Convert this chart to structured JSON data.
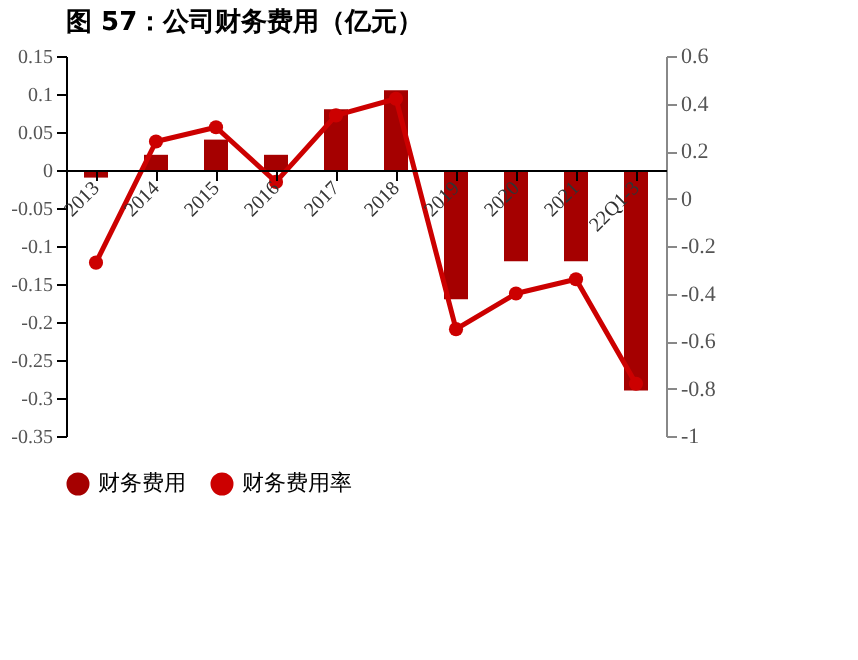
{
  "chart_data": {
    "type": "bar",
    "title": "图 57：公司财务费用（亿元）",
    "categories": [
      "2013",
      "2014",
      "2015",
      "2016",
      "2017",
      "2018",
      "2019",
      "2020",
      "2021",
      "22Q1-3"
    ],
    "series": [
      {
        "name": "财务费用",
        "type": "bar",
        "color": "#a50000",
        "values": [
          -0.01,
          0.02,
          0.04,
          0.02,
          0.08,
          0.105,
          -0.17,
          -0.12,
          -0.12,
          -0.29
        ]
      },
      {
        "name": "财务费用率",
        "type": "line",
        "axis": "y2",
        "color": "#cc0000",
        "marker": "circle",
        "values": [
          -0.27,
          0.24,
          0.3,
          0.07,
          0.35,
          0.42,
          -0.55,
          -0.4,
          -0.34,
          -0.78
        ]
      }
    ],
    "ylim": [
      -0.35,
      0.15
    ],
    "yticks": [
      -0.35,
      -0.3,
      -0.25,
      -0.2,
      -0.15,
      -0.1,
      -0.05,
      0,
      0.05,
      0.1,
      0.15
    ],
    "y2lim": [
      -1,
      0.6
    ],
    "y2ticks": [
      -1,
      -0.8,
      -0.6,
      -0.4,
      -0.2,
      0,
      0.2,
      0.4,
      0.6
    ],
    "grid": false,
    "legend": "bottom"
  }
}
